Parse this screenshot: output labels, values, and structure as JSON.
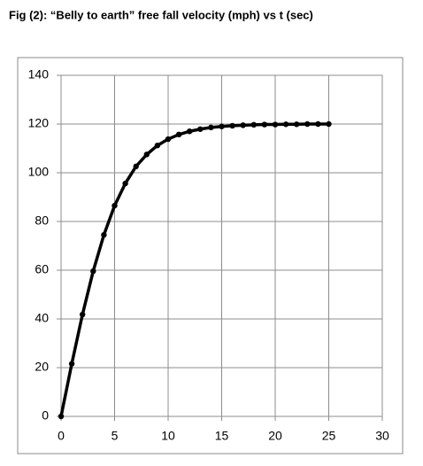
{
  "chart_data": {
    "type": "line",
    "title": "Fig (2): “Belly to earth” free fall velocity (mph) vs t (sec)",
    "x": [
      0,
      1,
      2,
      3,
      4,
      5,
      6,
      7,
      8,
      9,
      10,
      11,
      12,
      13,
      14,
      15,
      16,
      17,
      18,
      19,
      20,
      21,
      22,
      23,
      24,
      25
    ],
    "values": [
      0,
      21.6,
      41.8,
      59.6,
      74.5,
      86.5,
      95.6,
      102.6,
      107.5,
      111.2,
      113.8,
      115.7,
      117.0,
      117.9,
      118.6,
      119.0,
      119.3,
      119.5,
      119.7,
      119.8,
      119.8,
      119.9,
      119.9,
      120,
      120,
      120
    ],
    "color": "#000000",
    "xlim": [
      0,
      30
    ],
    "xticks": [
      0,
      5,
      10,
      15,
      20,
      25,
      30
    ],
    "ylim": [
      0,
      140
    ],
    "yticks": [
      0,
      20,
      40,
      60,
      80,
      100,
      120,
      140
    ],
    "grid": true
  }
}
